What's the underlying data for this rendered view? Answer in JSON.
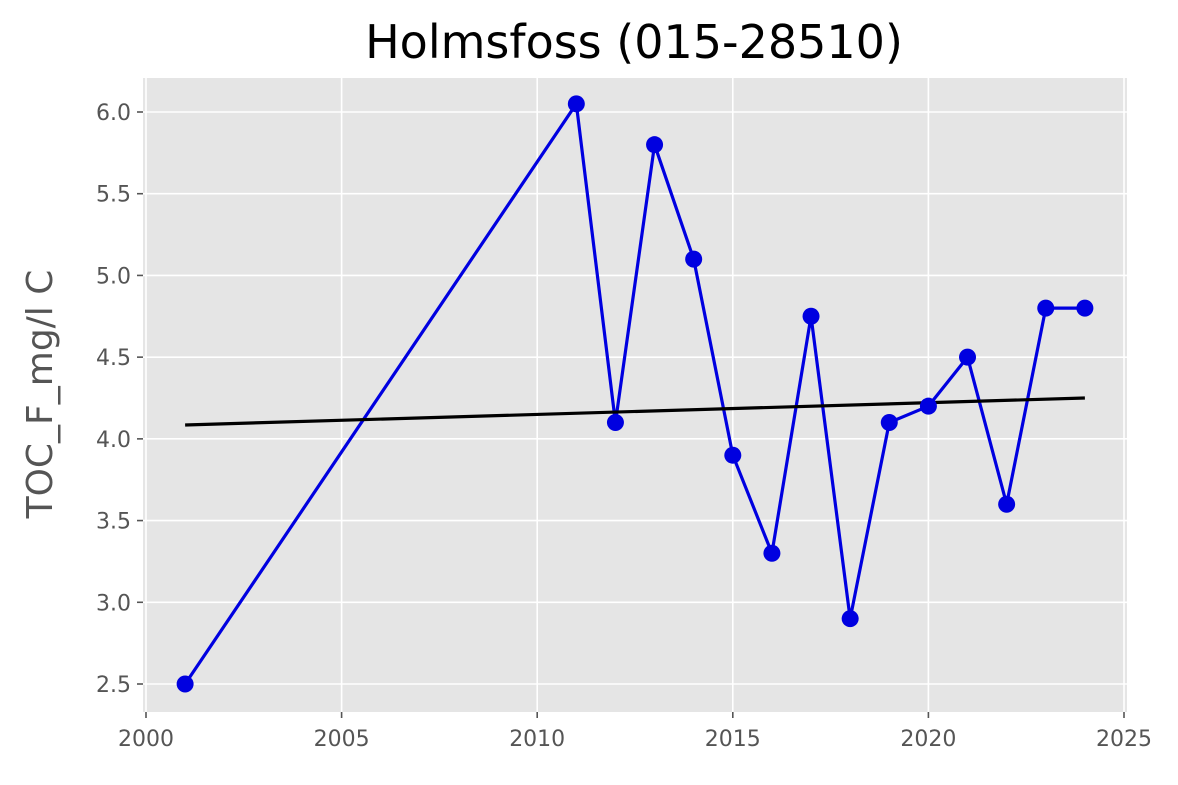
{
  "chart_data": {
    "type": "line",
    "title": "Holmsfoss (015-28510)",
    "xlabel": "",
    "ylabel": "TOC_F_mg/l C",
    "xlim": [
      2000,
      2025
    ],
    "ylim": [
      2.5,
      6.0
    ],
    "xticks": [
      "2000",
      "2005",
      "2010",
      "2015",
      "2020",
      "2025"
    ],
    "yticks": [
      "2.5",
      "3.0",
      "3.5",
      "4.0",
      "4.5",
      "5.0",
      "5.5",
      "6.0"
    ],
    "grid": true,
    "legend": "none",
    "series": [
      {
        "x": [
          2001,
          2011,
          2012,
          2013,
          2014,
          2015,
          2016,
          2017,
          2018,
          2019,
          2020,
          2021,
          2022,
          2023,
          2024
        ],
        "y": [
          2.5,
          6.05,
          4.1,
          5.8,
          5.1,
          3.9,
          3.3,
          4.75,
          2.9,
          4.1,
          4.2,
          4.5,
          3.6,
          4.8,
          4.8
        ],
        "color": "#0000e0"
      },
      {
        "x": [
          2001,
          2024
        ],
        "y": [
          4.085,
          4.25
        ],
        "color": "#000000"
      }
    ],
    "colors": {
      "plot_background": "#e5e5e5",
      "grid": "#ffffff",
      "data_line": "#0000e0",
      "trend_line": "#000000"
    }
  }
}
